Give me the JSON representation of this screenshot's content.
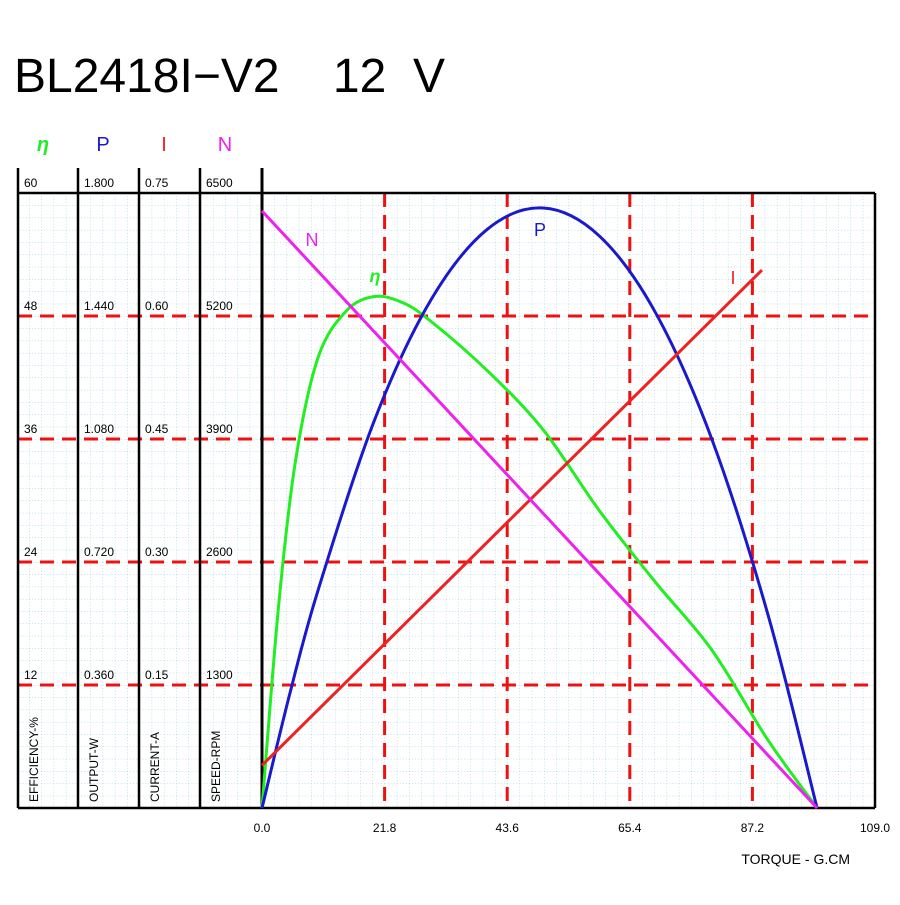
{
  "chart_data": {
    "type": "line",
    "title": "BL2418I−V2    12  V",
    "x_label": "TORQUE - G.CM",
    "xlim": [
      0,
      109
    ],
    "xticks": [
      {
        "value": 0,
        "label": "0.0"
      },
      21.8,
      43.6,
      65.4,
      87.2,
      {
        "value": 109,
        "label": "109.0"
      }
    ],
    "grid": true,
    "y_axes": [
      {
        "title": "EFFICIENCY-%",
        "lim": [
          0,
          60
        ],
        "ticks": [
          12,
          24,
          36,
          48,
          60
        ]
      },
      {
        "title": "OUTPUT-W",
        "lim": [
          0,
          1.8
        ],
        "ticks": [
          {
            "value": 0.36,
            "label": "0.360"
          },
          {
            "value": 0.72,
            "label": "0.720"
          },
          {
            "value": 1.08,
            "label": "1.080"
          },
          {
            "value": 1.44,
            "label": "1.440"
          },
          {
            "value": 1.8,
            "label": "1.800"
          }
        ]
      },
      {
        "title": "CURRENT-A",
        "lim": [
          0,
          0.75
        ],
        "ticks": [
          0.15,
          {
            "value": 0.3,
            "label": "0.30"
          },
          0.45,
          {
            "value": 0.6,
            "label": "0.60"
          },
          0.75
        ]
      },
      {
        "title": "SPEED-RPM",
        "lim": [
          0,
          6500
        ],
        "ticks": [
          1300,
          2600,
          3900,
          5200,
          6500
        ]
      }
    ],
    "series": [
      {
        "name": "η",
        "color": "#22ee22",
        "axis": 0,
        "x": [
          0,
          3,
          6,
          10,
          15,
          20,
          25,
          30,
          40,
          50,
          60,
          70,
          80,
          90,
          98.7
        ],
        "values": [
          0,
          20,
          34,
          44,
          48.5,
          49.9,
          49.3,
          47.5,
          42.7,
          36.9,
          29,
          22,
          15.4,
          6.6,
          0
        ]
      },
      {
        "name": "P",
        "color": "#1a1acc",
        "axis": 1,
        "x": [
          0,
          5,
          10,
          20,
          30,
          40,
          50,
          60,
          70,
          80,
          90,
          98.7
        ],
        "values": [
          0,
          0.338,
          0.639,
          1.135,
          1.486,
          1.693,
          1.756,
          1.674,
          1.449,
          1.079,
          0.564,
          0
        ]
      },
      {
        "name": "I",
        "color": "#ee2222",
        "axis": 2,
        "x": [
          0,
          88.9
        ],
        "values": [
          0.052,
          0.656
        ]
      },
      {
        "name": "N",
        "color": "#ee22ee",
        "axis": 3,
        "x": [
          0,
          98.7
        ],
        "values": [
          6310,
          0
        ]
      }
    ]
  }
}
